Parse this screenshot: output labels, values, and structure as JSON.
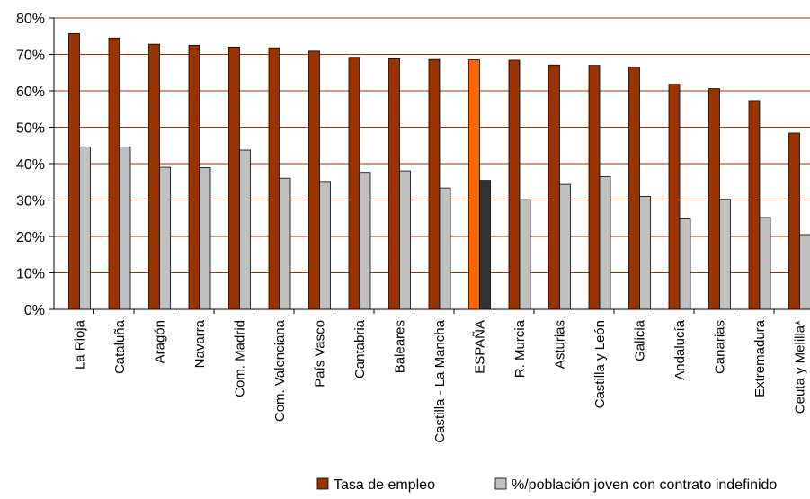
{
  "chart_data": {
    "type": "bar",
    "title": "",
    "xlabel": "",
    "ylabel": "",
    "ylim": [
      0,
      80
    ],
    "yticks": [
      "0%",
      "10%",
      "20%",
      "30%",
      "40%",
      "50%",
      "60%",
      "70%",
      "80%"
    ],
    "grid": true,
    "legend_position": "bottom",
    "categories": [
      "La Rioja",
      "Cataluña",
      "Aragón",
      "Navarra",
      "Com. Madrid",
      "Com. Valenciana",
      "País Vasco",
      "Cantabria",
      "Baleares",
      "Castilla - La Mancha",
      "ESPAÑA",
      "R. Murcia",
      "Asturias",
      "Castilla y León",
      "Galicia",
      "Andalucía",
      "Canarias",
      "Extremadura",
      "Ceuta y Melilla*"
    ],
    "highlight_category": "ESPAÑA",
    "series": [
      {
        "name": "Tasa de empleo",
        "color": "#993300",
        "highlight_color": "#FF6600",
        "values": [
          75.7,
          74.5,
          72.8,
          72.5,
          72.0,
          71.8,
          70.9,
          69.2,
          68.8,
          68.6,
          68.5,
          68.4,
          67.1,
          67.0,
          66.5,
          61.8,
          60.6,
          57.3,
          48.4
        ]
      },
      {
        "name": "%/población joven con contrato indefinido",
        "color": "#C0C0C0",
        "highlight_color": "#333333",
        "values": [
          44.6,
          44.6,
          39.0,
          38.9,
          43.7,
          36.0,
          35.1,
          37.6,
          38.0,
          33.3,
          35.4,
          30.1,
          34.3,
          36.4,
          31.0,
          24.8,
          30.2,
          25.2,
          20.5
        ]
      }
    ]
  },
  "legend": {
    "items": [
      {
        "label": "Tasa de empleo",
        "color": "#993300"
      },
      {
        "label": "%/población joven con contrato indefinido",
        "color": "#C0C0C0"
      }
    ]
  }
}
